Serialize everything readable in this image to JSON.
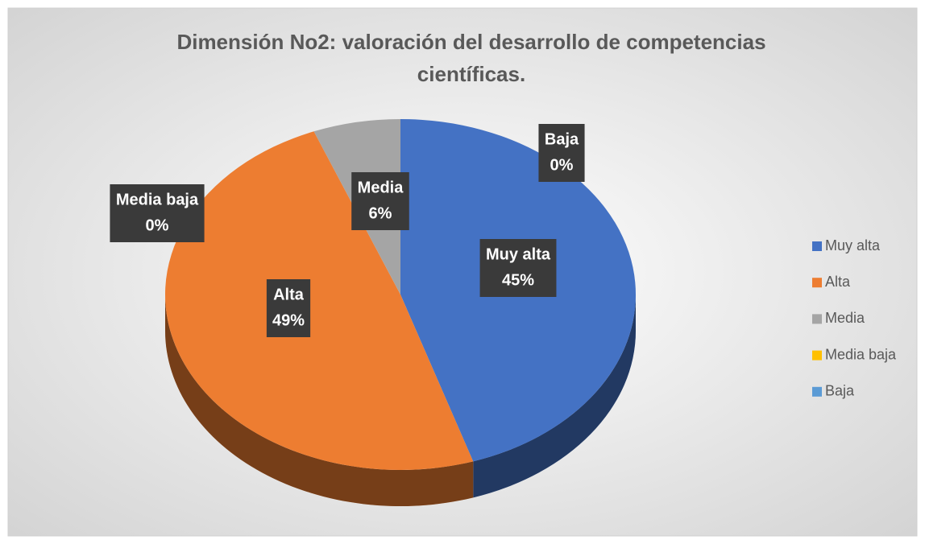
{
  "chart_data": {
    "type": "pie",
    "title": "Dimensión No2: valoración del desarrollo de competencias científicas.",
    "categories": [
      "Muy alta",
      "Alta",
      "Media",
      "Media baja",
      "Baja"
    ],
    "values": [
      45,
      49,
      6,
      0,
      0
    ],
    "value_labels": [
      "45%",
      "49%",
      "6%",
      "0%",
      "0%"
    ],
    "colors": [
      "#4472c4",
      "#ed7d31",
      "#a5a5a5",
      "#ffc000",
      "#5b9bd5"
    ],
    "legend": "right"
  }
}
